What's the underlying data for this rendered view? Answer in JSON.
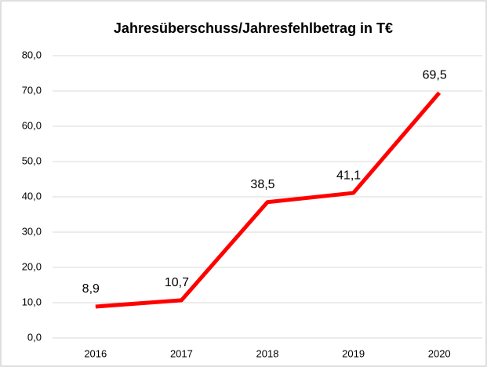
{
  "chart_data": {
    "type": "line",
    "title": "Jahresüberschuss/Jahresfehlbetrag in T€",
    "categories": [
      "2016",
      "2017",
      "2018",
      "2019",
      "2020"
    ],
    "series": [
      {
        "name": "Jahresüberschuss/Jahresfehlbetrag",
        "color": "#ff0000",
        "values": [
          8.9,
          10.7,
          38.5,
          41.1,
          69.5
        ],
        "value_labels": [
          "8,9",
          "10,7",
          "38,5",
          "41,1",
          "69,5"
        ]
      }
    ],
    "ylim": [
      0,
      80
    ],
    "yticks": [
      {
        "value": 0,
        "label": "0,0"
      },
      {
        "value": 10,
        "label": "10,0"
      },
      {
        "value": 20,
        "label": "20,0"
      },
      {
        "value": 30,
        "label": "30,0"
      },
      {
        "value": 40,
        "label": "40,0"
      },
      {
        "value": 50,
        "label": "50,0"
      },
      {
        "value": 60,
        "label": "60,0"
      },
      {
        "value": 70,
        "label": "70,0"
      },
      {
        "value": 80,
        "label": "80,0"
      }
    ],
    "grid": true
  }
}
